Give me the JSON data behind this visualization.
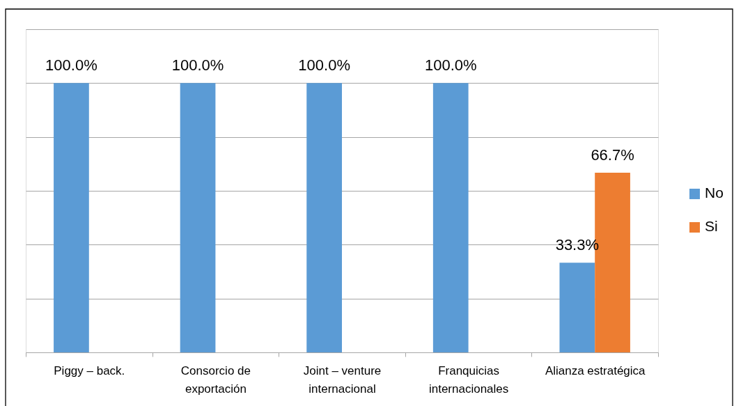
{
  "chart_data": {
    "type": "bar",
    "categories": [
      "Piggy – back.",
      "Consorcio de exportación",
      "Joint – venture internacional",
      "Franquicias internacionales",
      "Alianza estratégica"
    ],
    "series": [
      {
        "name": "No",
        "color": "#5b9bd5",
        "values": [
          100,
          100,
          100,
          100,
          33.3
        ],
        "value_labels": [
          "100.0%",
          "100.0%",
          "100.0%",
          "100.0%",
          "33.3%"
        ]
      },
      {
        "name": "Si",
        "color": "#ed7d31",
        "values": [
          null,
          null,
          null,
          null,
          66.7
        ],
        "value_labels": [
          null,
          null,
          null,
          null,
          "66.7%"
        ]
      }
    ],
    "ylim": [
      0,
      120
    ],
    "yticks": [
      {
        "value": 0,
        "label": null
      },
      {
        "value": 20,
        "label": null
      },
      {
        "value": 40,
        "label": null
      },
      {
        "value": 60,
        "label": null
      },
      {
        "value": 80,
        "label": null
      },
      {
        "value": 100,
        "label": null
      },
      {
        "value": 120,
        "label": null
      }
    ],
    "grid": "y",
    "legend": "right",
    "tick_labels": "x"
  }
}
